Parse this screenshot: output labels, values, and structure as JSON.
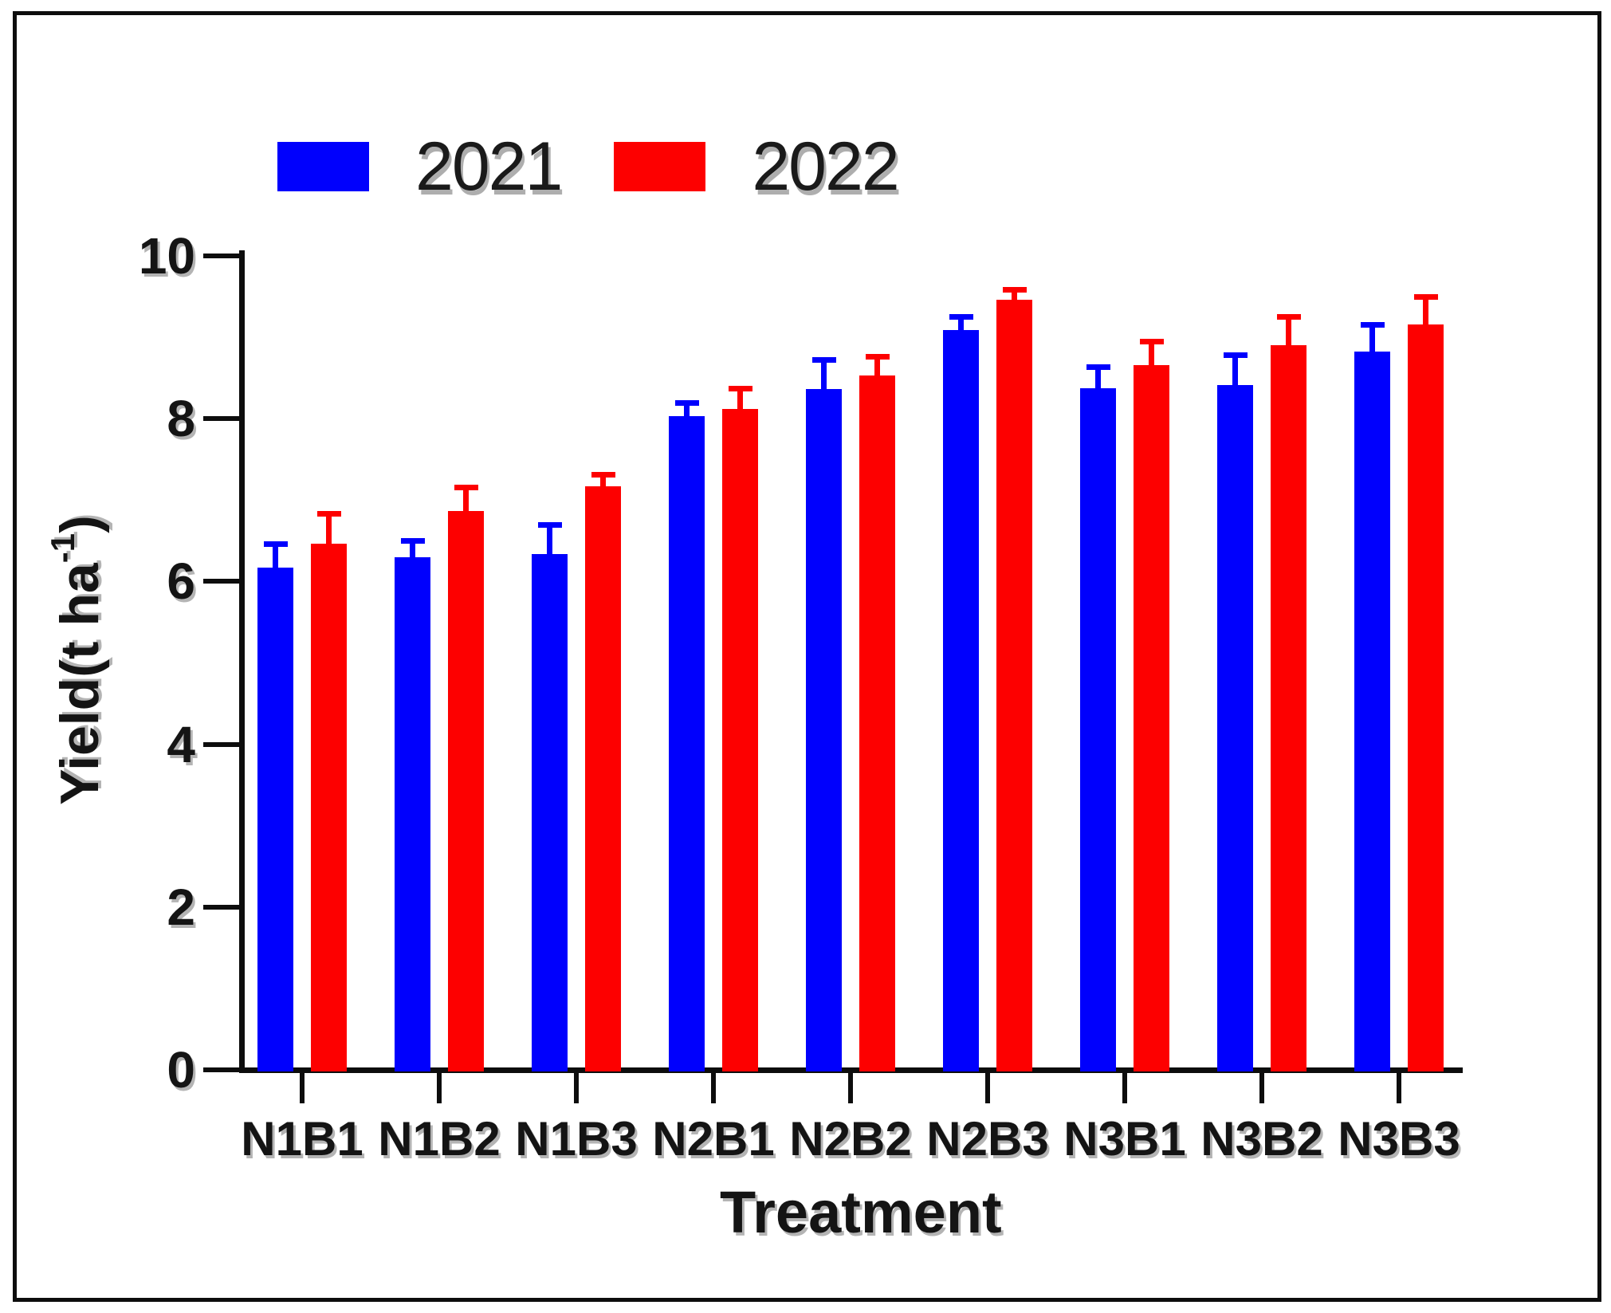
{
  "figure": {
    "y_label": {
      "prefix": "Yield(t ha",
      "sup": "-1",
      "suffix": ")"
    },
    "x_label": "Treatment"
  },
  "legend": [
    {
      "label": "2021",
      "color": "#0000fd"
    },
    {
      "label": "2022",
      "color": "#fd0000"
    }
  ],
  "chart_data": {
    "type": "bar",
    "title": "",
    "xlabel": "Treatment",
    "ylabel": "Yield(t ha-1)",
    "categories": [
      "N1B1",
      "N1B2",
      "N1B3",
      "N2B1",
      "N2B2",
      "N2B3",
      "N3B1",
      "N3B2",
      "N3B3"
    ],
    "series": [
      {
        "name": "2021",
        "color": "#0000fd",
        "values": [
          6.17,
          6.3,
          6.34,
          8.03,
          8.36,
          9.09,
          8.37,
          8.41,
          8.82
        ],
        "errors": [
          0.28,
          0.19,
          0.35,
          0.16,
          0.36,
          0.16,
          0.26,
          0.37,
          0.33
        ]
      },
      {
        "name": "2022",
        "color": "#fd0000",
        "values": [
          6.46,
          6.87,
          7.17,
          8.12,
          8.53,
          9.46,
          8.66,
          8.9,
          9.16
        ],
        "errors": [
          0.37,
          0.28,
          0.14,
          0.24,
          0.23,
          0.12,
          0.28,
          0.35,
          0.33
        ]
      }
    ],
    "ylim": [
      0,
      10
    ],
    "yticks": [
      0,
      2,
      4,
      6,
      8,
      10
    ],
    "grid": false,
    "legend_position": "top-left",
    "error_bars": "upper"
  }
}
